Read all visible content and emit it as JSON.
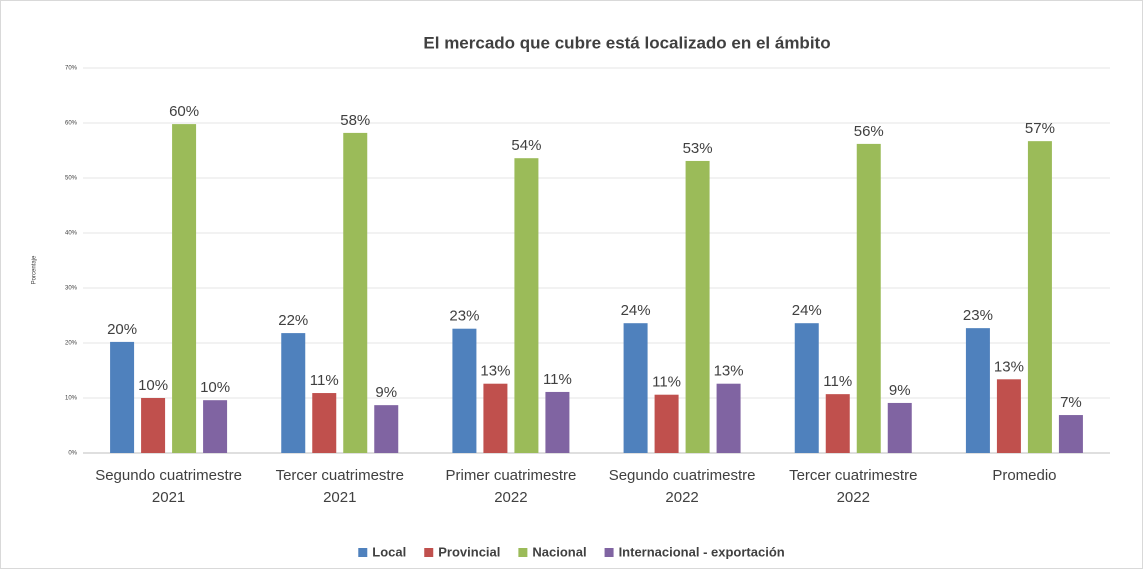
{
  "chart_data": {
    "type": "bar",
    "title": "El mercado que cubre está localizado en el ámbito",
    "y_label": "Porcentaje",
    "categories": [
      "Segundo cuatrimestre 2021",
      "Tercer cuatrimestre 2021",
      "Primer cuatrimestre 2022",
      "Segundo cuatrimestre 2022",
      "Tercer cuatrimestre 2022",
      "Promedio"
    ],
    "series": [
      {
        "name": "Local",
        "color": "#4f81bd",
        "values": [
          20.2,
          21.8,
          22.6,
          23.6,
          23.6,
          22.7
        ],
        "value_labels": [
          "20%",
          "22%",
          "23%",
          "24%",
          "24%",
          "23%"
        ]
      },
      {
        "name": "Provincial",
        "color": "#c0504d",
        "values": [
          10.0,
          10.9,
          12.6,
          10.6,
          10.7,
          13.4
        ],
        "value_labels": [
          "10%",
          "11%",
          "13%",
          "11%",
          "11%",
          "13%"
        ]
      },
      {
        "name": "Nacional",
        "color": "#9bbb59",
        "values": [
          59.8,
          58.2,
          53.6,
          53.1,
          56.2,
          56.7
        ],
        "value_labels": [
          "60%",
          "58%",
          "54%",
          "53%",
          "56%",
          "57%"
        ]
      },
      {
        "name": "Internacional - exportación",
        "color": "#8064a2",
        "values": [
          9.6,
          8.7,
          11.1,
          12.6,
          9.1,
          6.9
        ],
        "value_labels": [
          "10%",
          "9%",
          "11%",
          "13%",
          "9%",
          "7%"
        ]
      }
    ],
    "ylim": [
      0,
      70
    ],
    "yticks": [
      {
        "value": 0,
        "label": "0%"
      },
      {
        "value": 10,
        "label": "10%"
      },
      {
        "value": 20,
        "label": "20%"
      },
      {
        "value": 30,
        "label": "30%"
      },
      {
        "value": 40,
        "label": "40%"
      },
      {
        "value": 50,
        "label": "50%"
      },
      {
        "value": 60,
        "label": "60%"
      },
      {
        "value": 70,
        "label": "70%"
      }
    ],
    "grid": true,
    "legend": "bottom"
  }
}
